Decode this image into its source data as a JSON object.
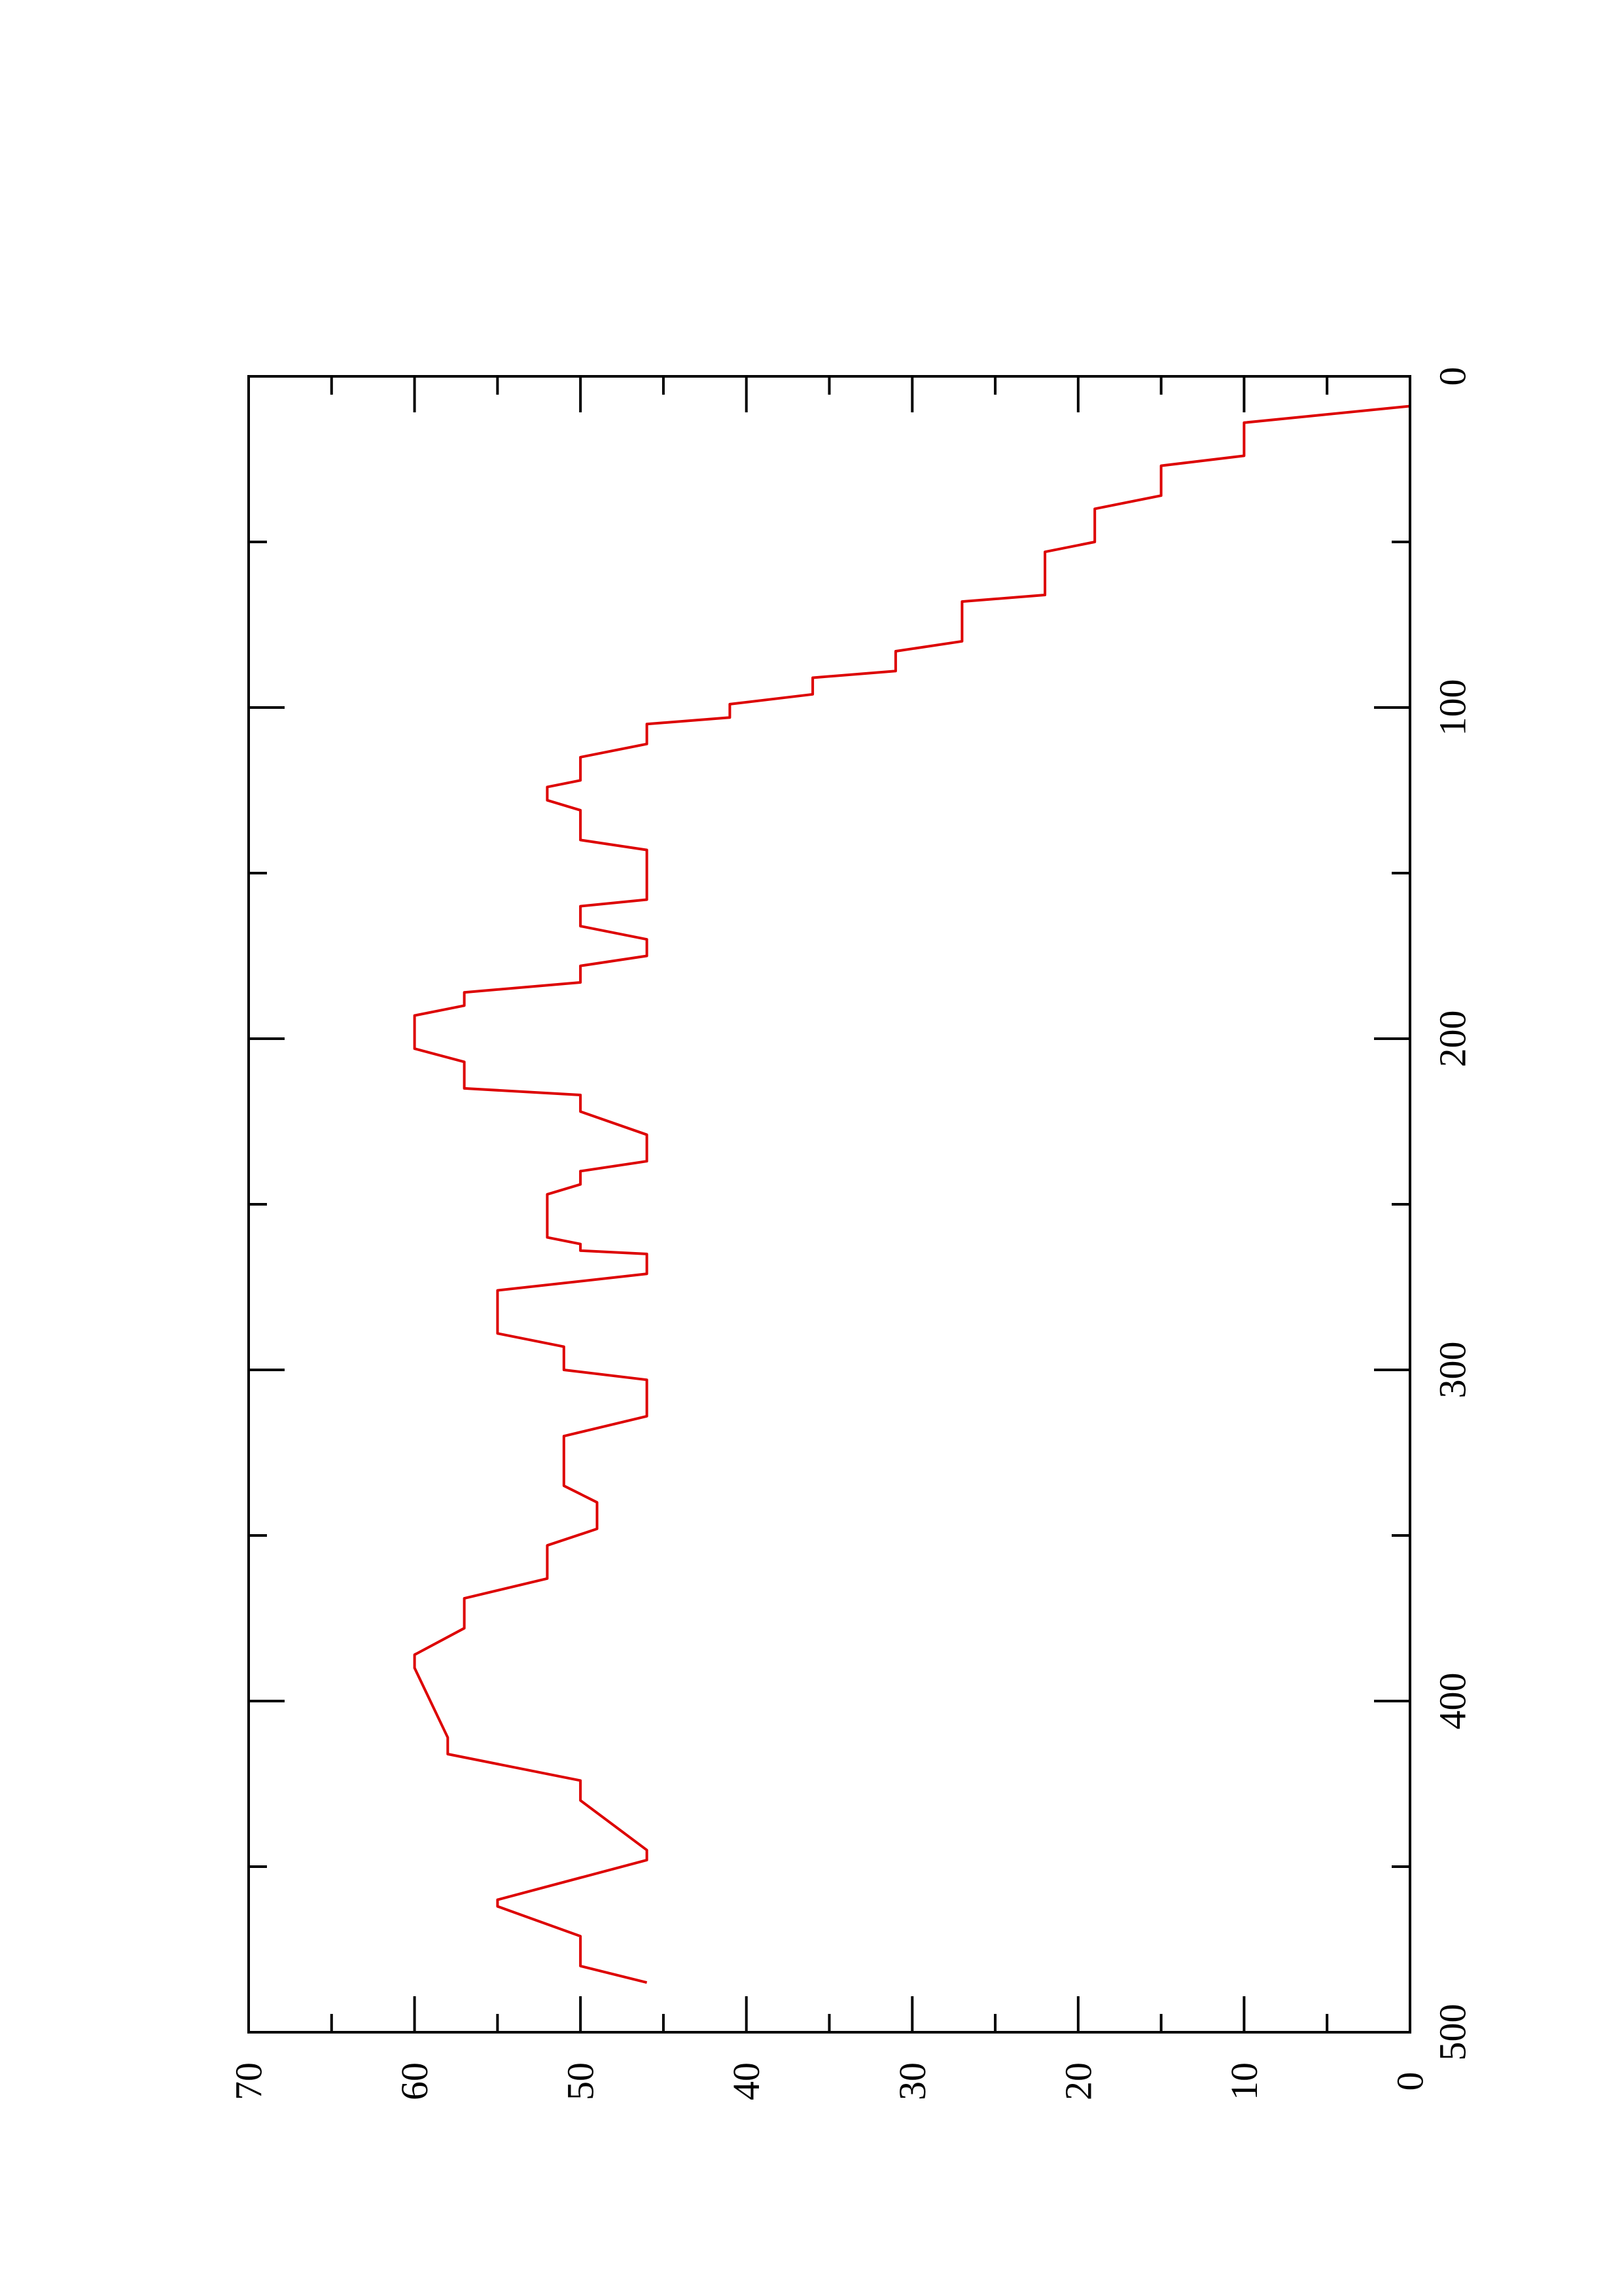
{
  "chart_data": {
    "type": "line",
    "title": "",
    "xlabel": "",
    "ylabel": "",
    "orientation": "rotated-90-ccw",
    "xlim": [
      0,
      500
    ],
    "ylim": [
      0,
      70
    ],
    "x_ticks": [
      0,
      100,
      200,
      300,
      400,
      500
    ],
    "x_tick_labels": [
      "0",
      "100",
      "200",
      "300",
      "400",
      "500"
    ],
    "y_ticks": [
      0,
      10,
      20,
      30,
      40,
      50,
      60,
      70
    ],
    "y_tick_labels": [
      "0",
      "10",
      "20",
      "30",
      "40",
      "50",
      "60",
      "70"
    ],
    "grid": false,
    "legend": "none",
    "colors": {
      "red": "#dd0000",
      "black": "#000000",
      "green": "#00dd00",
      "axis": "#000000"
    },
    "series": [
      {
        "color": "red",
        "step": true,
        "x": [
          0,
          9,
          14,
          24,
          27,
          36,
          40,
          50,
          53,
          66,
          68,
          80,
          83,
          89,
          91,
          96,
          99,
          103,
          105,
          111,
          115,
          122,
          124,
          128,
          131,
          140,
          143,
          158,
          160,
          166,
          170,
          175,
          178,
          183,
          186,
          190,
          193,
          203,
          207,
          215,
          217,
          222,
          229,
          237,
          240,
          244,
          247,
          260,
          262,
          264,
          265,
          271,
          276,
          289,
          293,
          300,
          303,
          314,
          320,
          335,
          340,
          348,
          353,
          363,
          369,
          378,
          386,
          390,
          411,
          416,
          424,
          430,
          445,
          448,
          460,
          462,
          471,
          480,
          485
        ],
        "y": [
          0,
          0,
          10,
          10,
          15,
          15,
          19,
          19,
          22,
          22,
          27,
          27,
          31,
          31,
          36,
          36,
          41,
          41,
          46,
          46,
          50,
          50,
          52,
          52,
          50,
          50,
          46,
          46,
          50,
          50,
          46,
          46,
          50,
          50,
          57,
          57,
          60,
          60,
          57,
          57,
          50,
          50,
          46,
          46,
          50,
          50,
          52,
          52,
          50,
          50,
          46,
          46,
          55,
          55,
          51,
          51,
          46,
          46,
          51,
          51,
          49,
          49,
          52,
          52,
          57,
          57,
          60,
          60,
          58,
          58,
          50,
          50,
          46,
          46,
          55,
          55,
          50,
          50,
          46
        ],
        "note_of_encoding": ""
      },
      {
        "color": "black",
        "step": false,
        "x": [],
        "y": []
      },
      {
        "color": "green",
        "step": false,
        "x": [],
        "y": []
      }
    ]
  }
}
